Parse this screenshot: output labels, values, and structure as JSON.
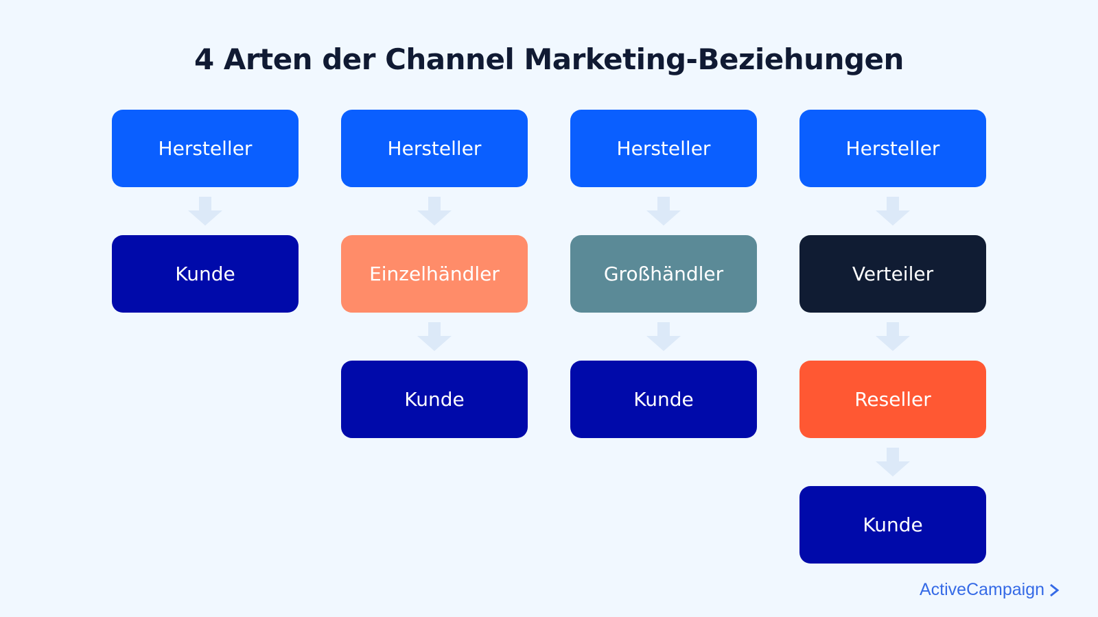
{
  "title": "4 Arten der Channel Marketing-Beziehungen",
  "colors": {
    "background": "#F1F8FF",
    "hersteller": "#0A5FFF",
    "kunde": "#000AAA",
    "einzelhaendler": "#FF8C69",
    "grosshaendler": "#5B8A97",
    "verteiler": "#101C33",
    "reseller": "#FF5833",
    "arrow": "#DCE9F8"
  },
  "columns": [
    {
      "nodes": [
        {
          "label": "Hersteller",
          "color": "#0A5FFF"
        },
        {
          "label": "Kunde",
          "color": "#000AAA"
        }
      ]
    },
    {
      "nodes": [
        {
          "label": "Hersteller",
          "color": "#0A5FFF"
        },
        {
          "label": "Einzelhändler",
          "color": "#FF8C69"
        },
        {
          "label": "Kunde",
          "color": "#000AAA"
        }
      ]
    },
    {
      "nodes": [
        {
          "label": "Hersteller",
          "color": "#0A5FFF"
        },
        {
          "label": "Großhändler",
          "color": "#5B8A97"
        },
        {
          "label": "Kunde",
          "color": "#000AAA"
        }
      ]
    },
    {
      "nodes": [
        {
          "label": "Hersteller",
          "color": "#0A5FFF"
        },
        {
          "label": "Verteiler",
          "color": "#101C33"
        },
        {
          "label": "Reseller",
          "color": "#FF5833"
        },
        {
          "label": "Kunde",
          "color": "#000AAA"
        }
      ]
    }
  ],
  "logo": {
    "text": "ActiveCampaign",
    "icon": "chevron-right-icon"
  }
}
